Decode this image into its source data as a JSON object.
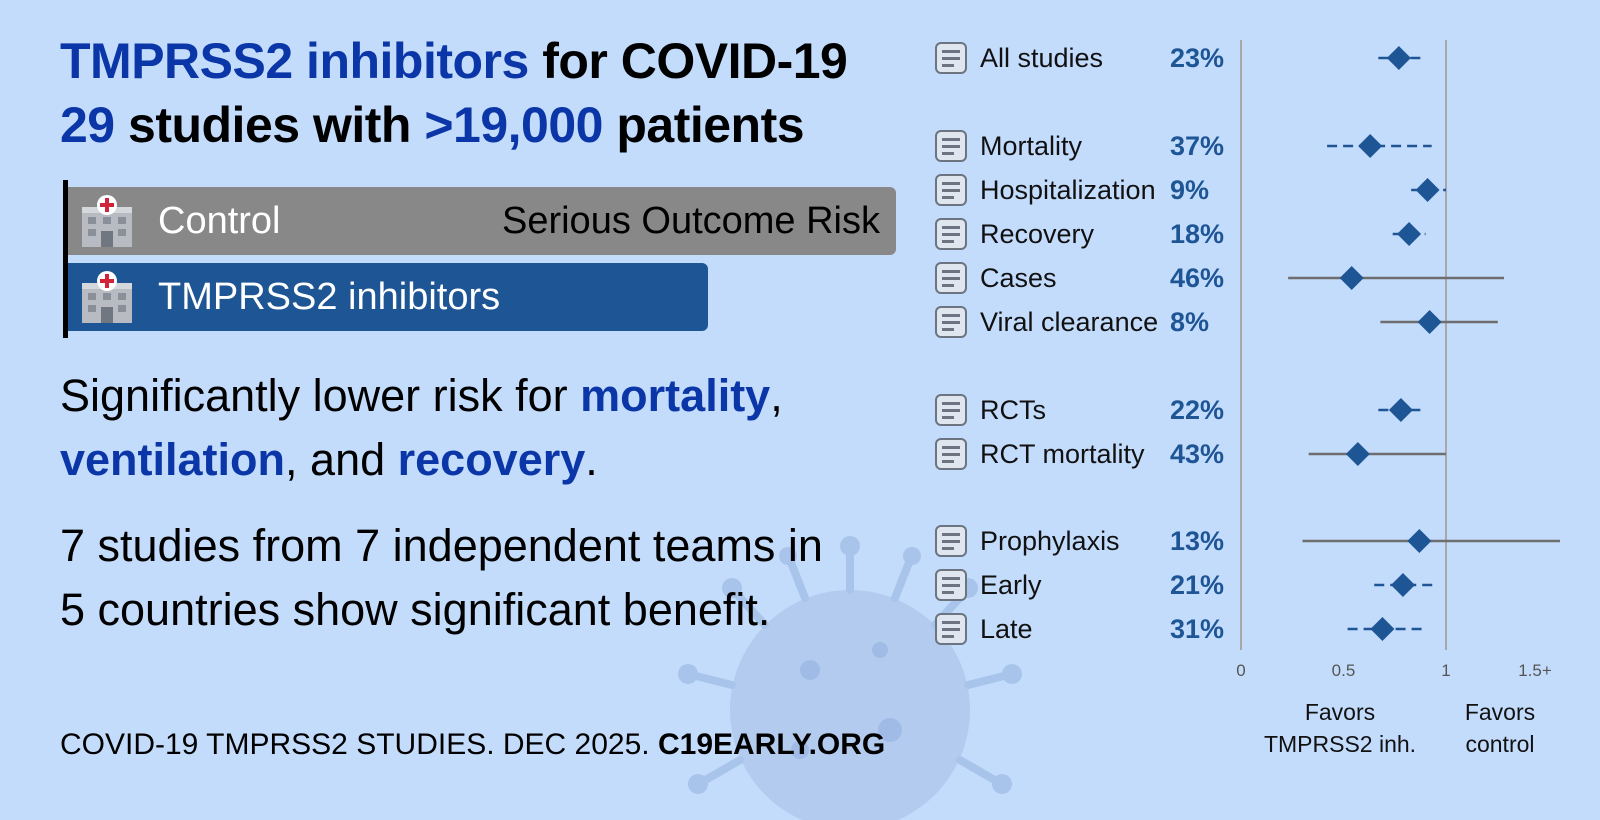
{
  "headline": {
    "line1_accent": "TMPRSS2 inhibitors",
    "line1_rest": " for COVID-19",
    "line2_num1": "29",
    "line2_mid": " studies with ",
    "line2_num2": ">19,000",
    "line2_end": " patients"
  },
  "risk_bars": {
    "control_label": "Control",
    "risk_title": "Serious Outcome Risk",
    "treatment_label": "TMPRSS2 inhibitors",
    "control_color": "#888888",
    "treatment_color": "#1e5595"
  },
  "finding": {
    "prefix": "Significantly lower risk for ",
    "term1": "mortality",
    "sep1": ",",
    "term2": "ventilation",
    "sep2": ", and ",
    "term3": "recovery",
    "end": "."
  },
  "summary_text": "7 studies from 7 independent teams in 5 countries show significant benefit.",
  "footer": {
    "text": "COVID-19 TMPRSS2 STUDIES. DEC 2025. ",
    "site": "C19EARLY.ORG"
  },
  "chart_data": {
    "type": "forest",
    "x_ticks": [
      "0",
      "0.5",
      "1",
      "1.5+"
    ],
    "xlim": [
      0,
      1.5
    ],
    "reference_line": 1,
    "favors_left": [
      "Favors",
      "TMPRSS2 inh."
    ],
    "favors_right": [
      "Favors",
      "control"
    ],
    "marker_color": "#1e5595",
    "groups": [
      {
        "rows": [
          {
            "label": "All studies",
            "pct": "23%",
            "icon": "studies-icon",
            "est": 0.77,
            "lo": 0.67,
            "hi": 0.88
          }
        ]
      },
      {
        "rows": [
          {
            "label": "Mortality",
            "pct": "37%",
            "icon": "tombstone-icon",
            "est": 0.63,
            "lo": 0.42,
            "hi": 0.93
          },
          {
            "label": "Hospitalization",
            "pct": "9%",
            "icon": "hospital-icon",
            "est": 0.91,
            "lo": 0.83,
            "hi": 1.0
          },
          {
            "label": "Recovery",
            "pct": "18%",
            "icon": "recovery-icon",
            "est": 0.82,
            "lo": 0.74,
            "hi": 0.9
          },
          {
            "label": "Cases",
            "pct": "46%",
            "icon": "masked-person-icon",
            "est": 0.54,
            "lo": 0.23,
            "hi": 1.28
          },
          {
            "label": "Viral clearance",
            "pct": "8%",
            "icon": "virus-icon",
            "est": 0.92,
            "lo": 0.68,
            "hi": 1.25
          }
        ]
      },
      {
        "rows": [
          {
            "label": "RCTs",
            "pct": "22%",
            "icon": "rct-icon",
            "est": 0.78,
            "lo": 0.67,
            "hi": 0.9
          },
          {
            "label": "RCT mortality",
            "pct": "43%",
            "icon": "tombstone-icon",
            "est": 0.57,
            "lo": 0.33,
            "hi": 1.0
          }
        ]
      },
      {
        "rows": [
          {
            "label": "Prophylaxis",
            "pct": "13%",
            "icon": "shield-icon",
            "est": 0.87,
            "lo": 0.3,
            "hi": 1.55
          },
          {
            "label": "Early",
            "pct": "21%",
            "icon": "clock-pill-icon",
            "est": 0.79,
            "lo": 0.65,
            "hi": 0.96
          },
          {
            "label": "Late",
            "pct": "31%",
            "icon": "hospital-bed-icon",
            "est": 0.69,
            "lo": 0.52,
            "hi": 0.91
          }
        ]
      }
    ]
  }
}
